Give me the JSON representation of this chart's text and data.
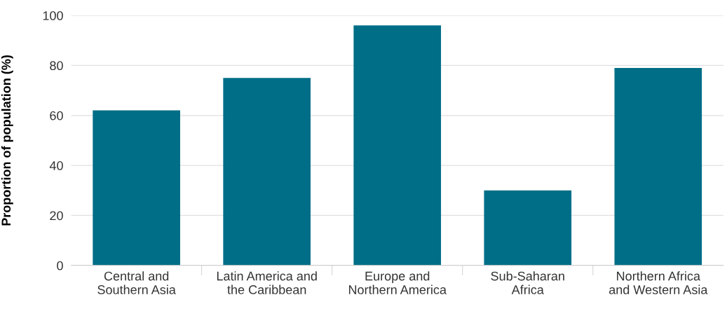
{
  "chart_data": {
    "type": "bar",
    "ylabel": "Proportion of population (%)",
    "categories": [
      "Central and\nSouthern Asia",
      "Latin America and\nthe Caribbean",
      "Europe and\nNorthern America",
      "Sub-Saharan\nAfrica",
      "Northern Africa\nand Western Asia"
    ],
    "values": [
      62,
      75,
      96,
      30,
      79
    ],
    "color": "#006e87",
    "ylim": [
      0,
      100
    ],
    "yticks": [
      0,
      20,
      40,
      60,
      80,
      100
    ],
    "grid": "y"
  }
}
